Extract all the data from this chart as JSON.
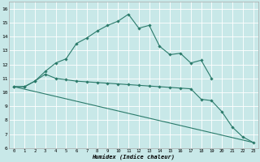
{
  "xlabel": "Humidex (Indice chaleur)",
  "bg_color": "#c8e8e8",
  "grid_color": "#ffffff",
  "line_color": "#2a7a6a",
  "xlim": [
    -0.5,
    23.5
  ],
  "ylim": [
    6,
    16.5
  ],
  "xticks": [
    0,
    1,
    2,
    3,
    4,
    5,
    6,
    7,
    8,
    9,
    10,
    11,
    12,
    13,
    14,
    15,
    16,
    17,
    18,
    19,
    20,
    21,
    22,
    23
  ],
  "yticks": [
    6,
    7,
    8,
    9,
    10,
    11,
    12,
    13,
    14,
    15,
    16
  ],
  "line1_x": [
    0,
    1,
    2,
    3,
    4,
    5,
    6,
    7,
    8,
    9,
    10,
    11,
    12,
    13,
    14,
    15,
    16,
    17,
    18,
    19
  ],
  "line1_y": [
    10.4,
    10.4,
    10.8,
    11.5,
    12.1,
    12.4,
    13.5,
    13.9,
    14.4,
    14.8,
    15.1,
    15.6,
    14.6,
    14.8,
    13.3,
    12.7,
    12.8,
    12.1,
    12.3,
    11.0
  ],
  "line2_x": [
    0,
    1,
    2,
    3,
    4,
    5,
    6,
    7,
    8,
    9,
    10,
    11,
    12,
    13,
    14,
    15,
    16,
    17,
    18,
    19,
    20,
    21,
    22,
    23
  ],
  "line2_y": [
    10.4,
    10.4,
    10.8,
    11.3,
    11.0,
    10.9,
    10.8,
    10.75,
    10.7,
    10.65,
    10.6,
    10.55,
    10.5,
    10.45,
    10.4,
    10.35,
    10.3,
    10.25,
    9.5,
    9.4,
    8.6,
    7.5,
    6.8,
    6.4
  ],
  "line3_x": [
    0,
    23
  ],
  "line3_y": [
    10.4,
    6.4
  ]
}
